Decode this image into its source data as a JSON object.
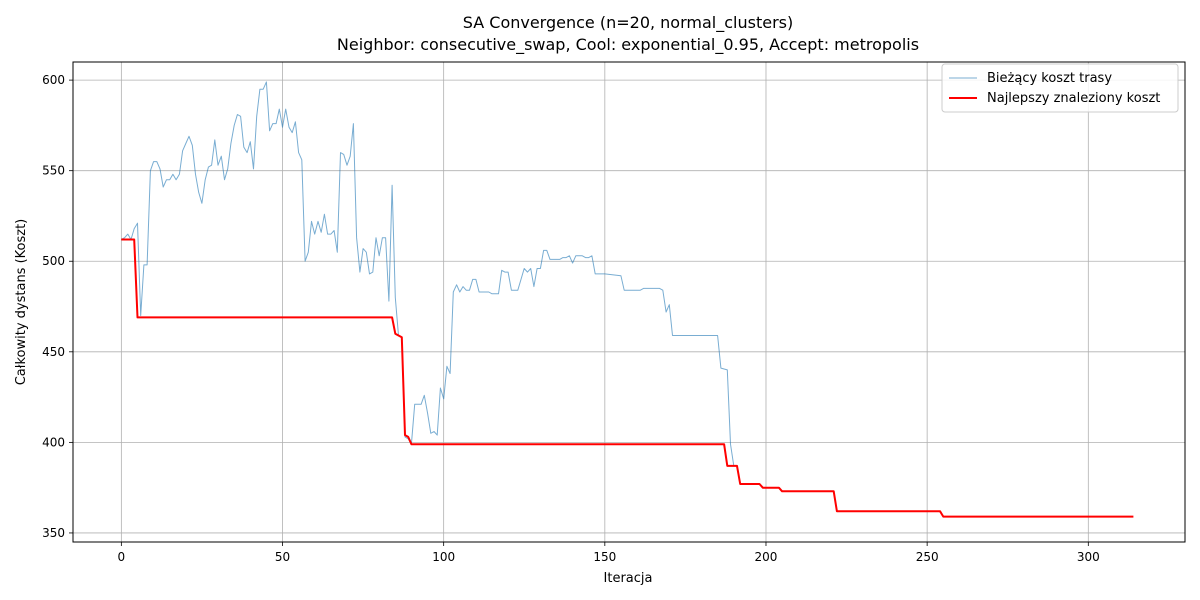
{
  "chart_data": {
    "type": "line",
    "title_line1": "SA Convergence (n=20, normal_clusters)",
    "title_line2": "Neighbor: consecutive_swap, Cool: exponential_0.95, Accept: metropolis",
    "xlabel": "Iteracja",
    "ylabel": "Całkowity dystans (Koszt)",
    "xlim": [
      -15,
      330
    ],
    "ylim": [
      345,
      610
    ],
    "xticks": [
      0,
      50,
      100,
      150,
      200,
      250,
      300
    ],
    "yticks": [
      350,
      400,
      450,
      500,
      550,
      600
    ],
    "grid": true,
    "legend_position": "top-right",
    "series": [
      {
        "name": "Bieżący koszt trasy",
        "color": "#1f77b4",
        "points": [
          [
            0,
            512
          ],
          [
            1,
            513
          ],
          [
            2,
            515
          ],
          [
            3,
            512
          ],
          [
            4,
            518
          ],
          [
            5,
            521
          ],
          [
            6,
            470
          ],
          [
            7,
            498
          ],
          [
            8,
            498
          ],
          [
            9,
            550
          ],
          [
            10,
            555
          ],
          [
            11,
            555
          ],
          [
            12,
            551
          ],
          [
            13,
            541
          ],
          [
            14,
            545
          ],
          [
            15,
            545
          ],
          [
            16,
            548
          ],
          [
            17,
            545
          ],
          [
            18,
            548
          ],
          [
            19,
            561
          ],
          [
            20,
            565
          ],
          [
            21,
            569
          ],
          [
            22,
            564
          ],
          [
            23,
            548
          ],
          [
            24,
            538
          ],
          [
            25,
            532
          ],
          [
            26,
            545
          ],
          [
            27,
            552
          ],
          [
            28,
            553
          ],
          [
            29,
            567
          ],
          [
            30,
            553
          ],
          [
            31,
            558
          ],
          [
            32,
            545
          ],
          [
            33,
            551
          ],
          [
            34,
            565
          ],
          [
            35,
            575
          ],
          [
            36,
            581
          ],
          [
            37,
            580
          ],
          [
            38,
            563
          ],
          [
            39,
            560
          ],
          [
            40,
            566
          ],
          [
            41,
            551
          ],
          [
            42,
            580
          ],
          [
            43,
            595
          ],
          [
            44,
            595
          ],
          [
            45,
            599
          ],
          [
            46,
            572
          ],
          [
            47,
            576
          ],
          [
            48,
            576
          ],
          [
            49,
            584
          ],
          [
            50,
            574
          ],
          [
            51,
            584
          ],
          [
            52,
            574
          ],
          [
            53,
            571
          ],
          [
            54,
            577
          ],
          [
            55,
            560
          ],
          [
            56,
            556
          ],
          [
            57,
            500
          ],
          [
            58,
            505
          ],
          [
            59,
            522
          ],
          [
            60,
            515
          ],
          [
            61,
            522
          ],
          [
            62,
            516
          ],
          [
            63,
            526
          ],
          [
            64,
            515
          ],
          [
            65,
            515
          ],
          [
            66,
            517
          ],
          [
            67,
            505
          ],
          [
            68,
            560
          ],
          [
            69,
            559
          ],
          [
            70,
            553
          ],
          [
            71,
            558
          ],
          [
            72,
            576
          ],
          [
            73,
            513
          ],
          [
            74,
            494
          ],
          [
            75,
            507
          ],
          [
            76,
            505
          ],
          [
            77,
            493
          ],
          [
            78,
            494
          ],
          [
            79,
            513
          ],
          [
            80,
            503
          ],
          [
            81,
            513
          ],
          [
            82,
            513
          ],
          [
            83,
            478
          ],
          [
            84,
            542
          ],
          [
            85,
            480
          ],
          [
            86,
            459
          ],
          [
            87,
            458
          ],
          [
            88,
            403
          ],
          [
            89,
            402
          ],
          [
            90,
            399
          ],
          [
            91,
            421
          ],
          [
            92,
            421
          ],
          [
            93,
            421
          ],
          [
            94,
            426
          ],
          [
            95,
            416
          ],
          [
            96,
            405
          ],
          [
            97,
            406
          ],
          [
            98,
            404
          ],
          [
            99,
            430
          ],
          [
            100,
            424
          ],
          [
            101,
            442
          ],
          [
            102,
            438
          ],
          [
            103,
            483
          ],
          [
            104,
            487
          ],
          [
            105,
            483
          ],
          [
            106,
            486
          ],
          [
            107,
            484
          ],
          [
            108,
            484
          ],
          [
            109,
            490
          ],
          [
            110,
            490
          ],
          [
            111,
            483
          ],
          [
            112,
            483
          ],
          [
            113,
            483
          ],
          [
            114,
            483
          ],
          [
            115,
            482
          ],
          [
            116,
            482
          ],
          [
            117,
            482
          ],
          [
            118,
            495
          ],
          [
            119,
            494
          ],
          [
            120,
            494
          ],
          [
            121,
            484
          ],
          [
            122,
            484
          ],
          [
            123,
            484
          ],
          [
            124,
            490
          ],
          [
            125,
            496
          ],
          [
            126,
            494
          ],
          [
            127,
            496
          ],
          [
            128,
            486
          ],
          [
            129,
            496
          ],
          [
            130,
            496
          ],
          [
            131,
            506
          ],
          [
            132,
            506
          ],
          [
            133,
            501
          ],
          [
            134,
            501
          ],
          [
            135,
            501
          ],
          [
            136,
            501
          ],
          [
            137,
            502
          ],
          [
            138,
            502
          ],
          [
            139,
            503
          ],
          [
            140,
            499
          ],
          [
            141,
            503
          ],
          [
            142,
            503
          ],
          [
            143,
            503
          ],
          [
            144,
            502
          ],
          [
            145,
            502
          ],
          [
            146,
            503
          ],
          [
            147,
            493
          ],
          [
            150,
            493
          ],
          [
            155,
            492
          ],
          [
            156,
            484
          ],
          [
            161,
            484
          ],
          [
            162,
            485
          ],
          [
            167,
            485
          ],
          [
            168,
            484
          ],
          [
            169,
            472
          ],
          [
            170,
            476
          ],
          [
            171,
            459
          ],
          [
            185,
            459
          ],
          [
            186,
            441
          ],
          [
            188,
            440
          ],
          [
            189,
            399
          ],
          [
            190,
            387
          ]
        ]
      },
      {
        "name": "Najlepszy znaleziony koszt",
        "color": "#ff0000",
        "points": [
          [
            0,
            512
          ],
          [
            4,
            512
          ],
          [
            5,
            469
          ],
          [
            83,
            469
          ],
          [
            84,
            469
          ],
          [
            85,
            460
          ],
          [
            86,
            459
          ],
          [
            87,
            458
          ],
          [
            88,
            404
          ],
          [
            89,
            403
          ],
          [
            90,
            399
          ],
          [
            187,
            399
          ],
          [
            188,
            387
          ],
          [
            191,
            387
          ],
          [
            192,
            377
          ],
          [
            198,
            377
          ],
          [
            199,
            375
          ],
          [
            204,
            375
          ],
          [
            205,
            373
          ],
          [
            206,
            373
          ],
          [
            221,
            373
          ],
          [
            222,
            362
          ],
          [
            254,
            362
          ],
          [
            255,
            359
          ],
          [
            314,
            359
          ]
        ]
      }
    ]
  }
}
